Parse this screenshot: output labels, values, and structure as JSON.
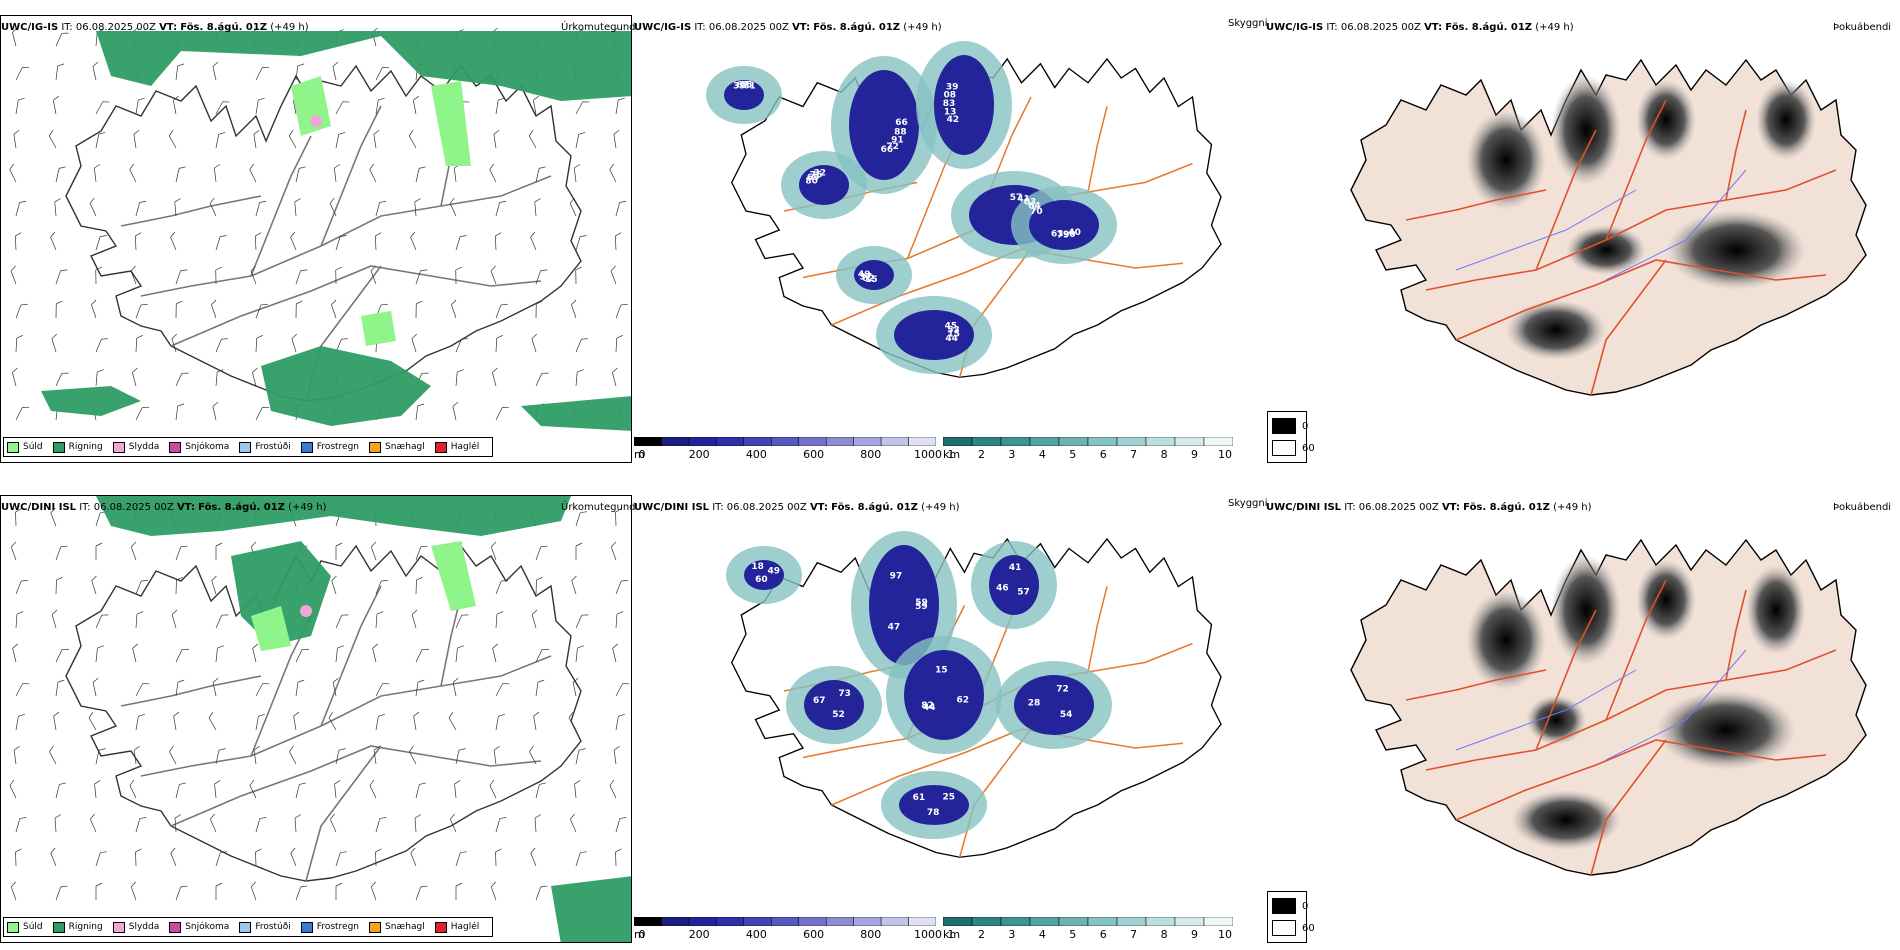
{
  "colors": {
    "rain": "#2e9c63",
    "drizzle": "#8ff58a",
    "sleet": "#f2a6d8",
    "snow": "#cc4aa0",
    "freezing_drizzle": "#9dc7f2",
    "freezing_rain": "#3a7ad0",
    "snow_pellets": "#f2a31b",
    "hail": "#e8202a",
    "roads": "#e8792a",
    "fog_dark": "#000000",
    "fog_light": "#ffffff",
    "terrain": "#f2e1d7"
  },
  "rows": [
    {
      "model": "UWC/IG-IS",
      "it_label": "IT:",
      "it_value": "06.08.2025 00Z",
      "vt_label": "VT:",
      "vt_value": "Fös. 8.ágú. 01Z",
      "lead": "(+49 h)",
      "precip_field": "Úrkomutegund",
      "cloud_field": "Skyggni",
      "fog_field": "Þokuábendi",
      "cloud_labels": [
        "66",
        "42",
        "57",
        "40",
        "80",
        "45",
        "15",
        "39",
        "88",
        "13",
        "41",
        "90",
        "69",
        "53",
        "62",
        "67",
        "91",
        "83",
        "03",
        "79",
        "76",
        "15",
        "37",
        "65",
        "72",
        "08",
        "64",
        "63",
        "32",
        "44",
        "49",
        "61",
        "66",
        "39",
        "70"
      ]
    },
    {
      "model": "UWC/DINI ISL",
      "it_label": "IT:",
      "it_value": "06.08.2025 00Z",
      "vt_label": "VT:",
      "vt_value": "Fös. 8.ágú. 01Z",
      "lead": "(+49 h)",
      "precip_field": "Úrkomutegund",
      "cloud_field": "Skyggni",
      "fog_field": "Þokuábendi",
      "cloud_labels": [
        "59",
        "44",
        "41",
        "54",
        "67",
        "25",
        "60",
        "97",
        "62",
        "46",
        "72",
        "52",
        "61",
        "49",
        "47",
        "15",
        "57",
        "28",
        "73",
        "78",
        "18",
        "59",
        "82"
      ]
    }
  ],
  "precip_legend": [
    {
      "label": "Súld",
      "color_key": "drizzle"
    },
    {
      "label": "Rigning",
      "color_key": "rain"
    },
    {
      "label": "Slydda",
      "color_key": "sleet"
    },
    {
      "label": "Snjókoma",
      "color_key": "snow"
    },
    {
      "label": "Frostúði",
      "color_key": "freezing_drizzle"
    },
    {
      "label": "Frostregn",
      "color_key": "freezing_rain"
    },
    {
      "label": "Snæhagl",
      "color_key": "snow_pellets"
    },
    {
      "label": "Haglél",
      "color_key": "hail"
    }
  ],
  "cloud_base_scale": {
    "unit": "m",
    "ticks": [
      "0",
      "200",
      "400",
      "600",
      "800",
      "1000"
    ],
    "colors": [
      "#000000",
      "#1c1c7a",
      "#23239a",
      "#2f2fa8",
      "#4444b4",
      "#5959bf",
      "#7373c9",
      "#8c8cd2",
      "#a6a6dd",
      "#c2c2e9",
      "#e0e0f5"
    ]
  },
  "visibility_scale": {
    "unit": "km",
    "ticks": [
      "1",
      "2",
      "3",
      "4",
      "5",
      "6",
      "7",
      "8",
      "9",
      "10"
    ],
    "colors": [
      "#1f6f6f",
      "#2f8282",
      "#3f9292",
      "#55a3a3",
      "#6cb2b2",
      "#86c2c2",
      "#a0d0d0",
      "#bbdede",
      "#d6ecec",
      "#eef8f8"
    ]
  },
  "fog_legend": [
    {
      "label": "0",
      "color_key": "fog_dark"
    },
    {
      "label": "60",
      "color_key": "fog_light"
    }
  ]
}
